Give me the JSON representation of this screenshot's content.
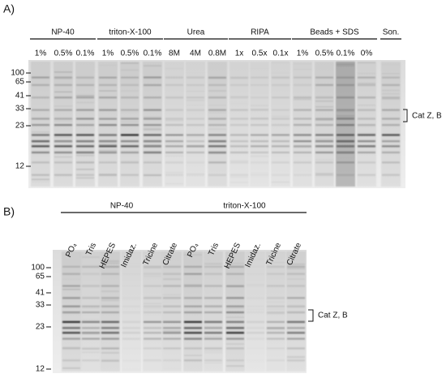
{
  "panel_a": {
    "label": "A)",
    "groups": [
      {
        "name": "NP-40",
        "lanes": [
          "1%",
          "0.5%",
          "0.1%"
        ]
      },
      {
        "name": "triton-X-100",
        "lanes": [
          "1%",
          "0.5%",
          "0.1%"
        ]
      },
      {
        "name": "Urea",
        "lanes": [
          "8M",
          "4M",
          "0.8M"
        ]
      },
      {
        "name": "RIPA",
        "lanes": [
          "1x",
          "0.5x",
          "0.1x"
        ]
      },
      {
        "name": "Beads + SDS",
        "lanes": [
          "1%",
          "0.5%",
          "0.1%",
          "0%"
        ]
      },
      {
        "name": "Son.",
        "lanes": []
      }
    ],
    "markers": [
      100,
      65,
      41,
      33,
      23,
      12
    ],
    "band_label": "Cat Z, B"
  },
  "panel_b": {
    "label": "B)",
    "groups": [
      {
        "name": "NP-40",
        "lanes": [
          "PO₄",
          "Tris",
          "HEPES",
          "Imidaz.",
          "Tricine",
          "Citrate"
        ]
      },
      {
        "name": "triton-X-100",
        "lanes": [
          "PO₄",
          "Tris",
          "HEPES",
          "Imidaz.",
          "Tricine",
          "Citrate"
        ]
      }
    ],
    "markers": [
      100,
      65,
      41,
      33,
      23,
      12
    ],
    "band_label": "Cat Z, B"
  }
}
